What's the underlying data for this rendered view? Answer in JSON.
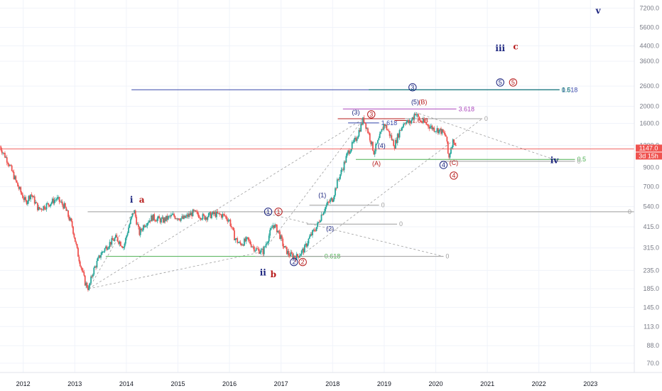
{
  "chart_data": {
    "type": "candlestick",
    "y_scale": "log",
    "ylim": [
      62,
      8000
    ],
    "xlim": [
      2011.55,
      2023.85
    ],
    "x_ticks": [
      "2012",
      "2013",
      "2014",
      "2015",
      "2016",
      "2017",
      "2018",
      "2019",
      "2020",
      "2021",
      "2022",
      "2023"
    ],
    "y_ticks": [
      "7200.0",
      "5600.0",
      "4400.0",
      "3600.0",
      "2600.0",
      "2000.0",
      "1600.0",
      "1200.0",
      "900.0",
      "700.0",
      "540.0",
      "415.0",
      "315.0",
      "235.0",
      "185.0",
      "145.0",
      "113.0",
      "88.0",
      "70.0"
    ],
    "last_price": "1147.0",
    "countdown": "3d 15h",
    "colors": {
      "up": "#26a69a",
      "down": "#ef5350",
      "blue_count": "#1a237e",
      "red_count": "#b71c1c"
    },
    "price_path": [
      [
        2011.55,
        1180
      ],
      [
        2011.7,
        980
      ],
      [
        2011.9,
        700
      ],
      [
        2012.05,
        570
      ],
      [
        2012.15,
        640
      ],
      [
        2012.3,
        520
      ],
      [
        2012.5,
        560
      ],
      [
        2012.65,
        600
      ],
      [
        2012.8,
        540
      ],
      [
        2012.95,
        420
      ],
      [
        2013.05,
        300
      ],
      [
        2013.2,
        200
      ],
      [
        2013.27,
        185
      ],
      [
        2013.35,
        230
      ],
      [
        2013.5,
        290
      ],
      [
        2013.65,
        330
      ],
      [
        2013.8,
        360
      ],
      [
        2013.95,
        320
      ],
      [
        2014.05,
        420
      ],
      [
        2014.15,
        515
      ],
      [
        2014.25,
        380
      ],
      [
        2014.35,
        430
      ],
      [
        2014.5,
        470
      ],
      [
        2014.7,
        450
      ],
      [
        2014.9,
        480
      ],
      [
        2015.1,
        460
      ],
      [
        2015.3,
        500
      ],
      [
        2015.5,
        470
      ],
      [
        2015.7,
        490
      ],
      [
        2015.9,
        480
      ],
      [
        2016.0,
        450
      ],
      [
        2016.1,
        360
      ],
      [
        2016.2,
        330
      ],
      [
        2016.35,
        350
      ],
      [
        2016.5,
        310
      ],
      [
        2016.65,
        300
      ],
      [
        2016.75,
        360
      ],
      [
        2016.85,
        430
      ],
      [
        2016.95,
        390
      ],
      [
        2017.05,
        320
      ],
      [
        2017.15,
        290
      ],
      [
        2017.3,
        280
      ],
      [
        2017.45,
        310
      ],
      [
        2017.55,
        360
      ],
      [
        2017.7,
        420
      ],
      [
        2017.8,
        500
      ],
      [
        2017.9,
        560
      ],
      [
        2018.0,
        600
      ],
      [
        2018.1,
        760
      ],
      [
        2018.2,
        900
      ],
      [
        2018.3,
        1100
      ],
      [
        2018.45,
        1300
      ],
      [
        2018.6,
        1700
      ],
      [
        2018.7,
        1400
      ],
      [
        2018.8,
        1100
      ],
      [
        2018.9,
        1300
      ],
      [
        2019.0,
        1600
      ],
      [
        2019.1,
        1400
      ],
      [
        2019.2,
        1200
      ],
      [
        2019.3,
        1450
      ],
      [
        2019.4,
        1650
      ],
      [
        2019.5,
        1600
      ],
      [
        2019.6,
        1850
      ],
      [
        2019.7,
        1650
      ],
      [
        2019.8,
        1600
      ],
      [
        2019.95,
        1500
      ],
      [
        2020.1,
        1450
      ],
      [
        2020.2,
        1350
      ],
      [
        2020.25,
        1000
      ],
      [
        2020.3,
        1200
      ],
      [
        2020.35,
        1300
      ],
      [
        2020.4,
        1147
      ]
    ],
    "horizontal_levels": [
      {
        "y": 2480,
        "x1": 2014.1,
        "x2": 2022.4,
        "color": "#3949ab",
        "label": "1.618"
      },
      {
        "y": 2480,
        "x1": 2018.7,
        "x2": 2022.4,
        "color": "#00796b",
        "label": "0.5"
      },
      {
        "y": 1930,
        "x1": 2018.2,
        "x2": 2020.4,
        "color": "#ab47bc",
        "label": "3.618"
      },
      {
        "y": 1700,
        "x1": 2018.1,
        "x2": 2020.9,
        "color": "#b71c1c",
        "label": ""
      },
      {
        "y": 1700,
        "x1": 2019.4,
        "x2": 2020.9,
        "color": "#9e9e9e",
        "label": "0"
      },
      {
        "y": 1610,
        "x1": 2018.3,
        "x2": 2018.9,
        "color": "#3949ab",
        "label": "1.618"
      },
      {
        "y": 1660,
        "x1": 2019.2,
        "x2": 2019.5,
        "color": "#b71c1c",
        "label": "1.618"
      },
      {
        "y": 1000,
        "x1": 2018.45,
        "x2": 2022.7,
        "color": "#4caf50",
        "label": "0.5"
      },
      {
        "y": 975,
        "x1": 2020.1,
        "x2": 2022.7,
        "color": "#9e9e9e",
        "label": "0"
      },
      {
        "y": 505,
        "x1": 2013.25,
        "x2": 2024.0,
        "color": "#9e9e9e",
        "label": "0"
      },
      {
        "y": 550,
        "x1": 2017.55,
        "x2": 2018.9,
        "color": "#9e9e9e",
        "label": "0"
      },
      {
        "y": 430,
        "x1": 2017.5,
        "x2": 2019.25,
        "color": "#9e9e9e",
        "label": "0"
      },
      {
        "y": 282,
        "x1": 2013.6,
        "x2": 2017.8,
        "color": "#4caf50",
        "label": "0.618"
      },
      {
        "y": 282,
        "x1": 2016.5,
        "x2": 2020.15,
        "color": "#9e9e9e",
        "label": "0"
      }
    ],
    "fib_label_texts": {
      "l1618": "1.618",
      "l05a": "0.5",
      "l3618": "3.618",
      "l0a": "0",
      "l1618b": "1.618",
      "l1618c": "1.618",
      "l05b": "0.5",
      "l0b": "0",
      "l0c": "0",
      "l0d": "0",
      "l0e": "0",
      "l0618": "0.618",
      "l0f": "0"
    },
    "wave_labels": [
      {
        "text": "i",
        "x": 2014.1,
        "y": 570,
        "color": "#1a237e",
        "style": "big"
      },
      {
        "text": "a",
        "x": 2014.3,
        "y": 570,
        "color": "#b71c1c",
        "style": "big"
      },
      {
        "text": "ii",
        "x": 2016.65,
        "y": 220,
        "color": "#1a237e",
        "style": "big"
      },
      {
        "text": "b",
        "x": 2016.85,
        "y": 215,
        "color": "#b71c1c",
        "style": "big"
      },
      {
        "text": "iii",
        "x": 2021.25,
        "y": 4100,
        "color": "#1a237e",
        "style": "big"
      },
      {
        "text": "c",
        "x": 2021.55,
        "y": 4200,
        "color": "#b71c1c",
        "style": "big"
      },
      {
        "text": "iv",
        "x": 2022.3,
        "y": 950,
        "color": "#1a237e",
        "style": "big"
      },
      {
        "text": "v",
        "x": 2023.15,
        "y": 6700,
        "color": "#1a237e",
        "style": "big"
      },
      {
        "text": "(1)",
        "x": 2017.8,
        "y": 610,
        "color": "#1a237e",
        "style": "plain"
      },
      {
        "text": "(2)",
        "x": 2017.95,
        "y": 395,
        "color": "#1a237e",
        "style": "plain"
      },
      {
        "text": "(3)",
        "x": 2018.45,
        "y": 1800,
        "color": "#1a237e",
        "style": "plain"
      },
      {
        "text": "(4)",
        "x": 2018.95,
        "y": 1160,
        "color": "#1a237e",
        "style": "plain"
      },
      {
        "text": "(5)",
        "x": 2019.6,
        "y": 2060,
        "color": "#1a237e",
        "style": "plain"
      },
      {
        "text": "(A)",
        "x": 2018.85,
        "y": 920,
        "color": "#b71c1c",
        "style": "plain"
      },
      {
        "text": "(B)",
        "x": 2019.75,
        "y": 2060,
        "color": "#b71c1c",
        "style": "plain"
      },
      {
        "text": "(C)",
        "x": 2020.35,
        "y": 930,
        "color": "#b71c1c",
        "style": "plain"
      },
      {
        "text": "1",
        "x": 2016.75,
        "y": 505,
        "color": "#1a237e",
        "style": "circle"
      },
      {
        "text": "1",
        "x": 2016.95,
        "y": 505,
        "color": "#b71c1c",
        "style": "circle"
      },
      {
        "text": "2",
        "x": 2017.25,
        "y": 262,
        "color": "#1a237e",
        "style": "circle"
      },
      {
        "text": "2",
        "x": 2017.42,
        "y": 262,
        "color": "#b71c1c",
        "style": "circle"
      },
      {
        "text": "3",
        "x": 2018.75,
        "y": 1800,
        "color": "#b71c1c",
        "style": "circle"
      },
      {
        "text": "3",
        "x": 2019.55,
        "y": 2560,
        "color": "#1a237e",
        "style": "circle"
      },
      {
        "text": "4",
        "x": 2020.15,
        "y": 930,
        "color": "#1a237e",
        "style": "circle"
      },
      {
        "text": "4",
        "x": 2020.35,
        "y": 810,
        "color": "#b71c1c",
        "style": "circle"
      },
      {
        "text": "5",
        "x": 2021.25,
        "y": 2730,
        "color": "#1a237e",
        "style": "circle"
      },
      {
        "text": "5",
        "x": 2021.5,
        "y": 2730,
        "color": "#b71c1c",
        "style": "circle"
      }
    ],
    "trendlines": [
      {
        "x1": 2013.27,
        "y1": 185,
        "x2": 2014.15,
        "y2": 515
      },
      {
        "x1": 2013.27,
        "y1": 185,
        "x2": 2016.65,
        "y2": 300
      },
      {
        "x1": 2013.27,
        "y1": 185,
        "x2": 2018.6,
        "y2": 1700
      },
      {
        "x1": 2017.35,
        "y1": 280,
        "x2": 2020.9,
        "y2": 1700
      },
      {
        "x1": 2016.65,
        "y1": 300,
        "x2": 2018.6,
        "y2": 1700
      },
      {
        "x1": 2016.6,
        "y1": 505,
        "x2": 2020.15,
        "y2": 282
      },
      {
        "x1": 2019.6,
        "y1": 1850,
        "x2": 2022.4,
        "y2": 975
      }
    ]
  }
}
